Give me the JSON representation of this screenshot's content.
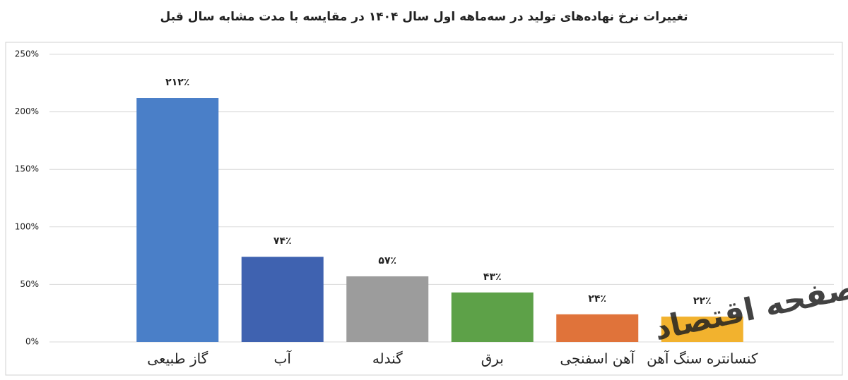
{
  "chart_data": {
    "type": "bar",
    "title": "تغییرات نرخ نهاده‌های تولید در سه‌ماهه اول سال ۱۴۰۴ در مقایسه با مدت مشابه سال قبل",
    "categories": [
      "گاز طبیعی",
      "آب",
      "گندله",
      "برق",
      "آهن اسفنجی",
      "کنسانتره سنگ آهن"
    ],
    "values": [
      212,
      74,
      57,
      43,
      24,
      22
    ],
    "value_labels": [
      "۲۱۲٪",
      "۷۴٪",
      "۵۷٪",
      "۴۳٪",
      "۲۴٪",
      "۲۲٪"
    ],
    "colors": [
      "#4a7fc8",
      "#3f62b0",
      "#9c9c9c",
      "#5da148",
      "#e0733a",
      "#f2b22e"
    ],
    "ylim": [
      0,
      250
    ],
    "yticks": [
      {
        "value": 0,
        "label": "0%"
      },
      {
        "value": 50,
        "label": "50%"
      },
      {
        "value": 100,
        "label": "100%"
      },
      {
        "value": 150,
        "label": "150%"
      },
      {
        "value": 200,
        "label": "200%"
      },
      {
        "value": 250,
        "label": "250%"
      }
    ],
    "grid": true,
    "watermark": "صفحه اقتصاد"
  }
}
